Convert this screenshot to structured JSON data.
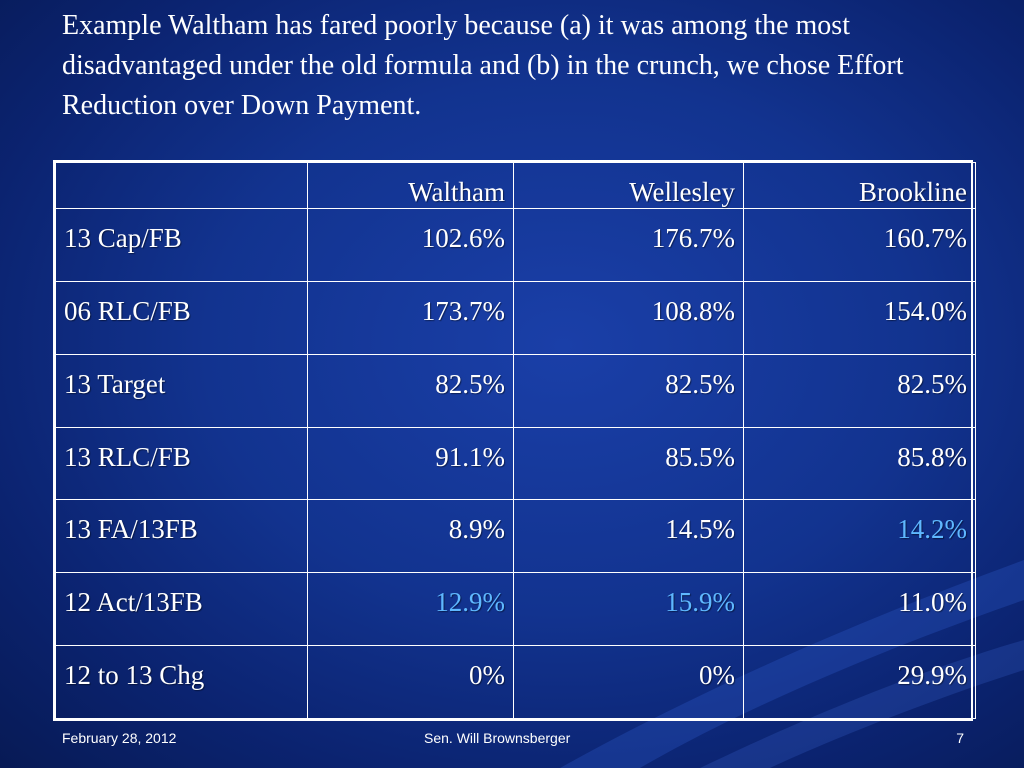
{
  "slide": {
    "title": "Example Waltham has fared poorly because (a) it was among the most disadvantaged under the old formula and (b) in the crunch, we chose Effort Reduction over Down Payment."
  },
  "table": {
    "headers": [
      "",
      "Waltham",
      "Wellesley",
      "Brookline"
    ],
    "rows": [
      {
        "label": "13 Cap/FB",
        "values": [
          "102.6%",
          "176.7%",
          "160.7%"
        ]
      },
      {
        "label": "06 RLC/FB",
        "values": [
          "173.7%",
          "108.8%",
          "154.0%"
        ]
      },
      {
        "label": "13 Target",
        "values": [
          "82.5%",
          "82.5%",
          "82.5%"
        ]
      },
      {
        "label": "13 RLC/FB",
        "values": [
          "91.1%",
          "85.5%",
          "85.8%"
        ]
      },
      {
        "label": "13 FA/13FB",
        "values": [
          "8.9%",
          "14.5%",
          "14.2%"
        ]
      },
      {
        "label": "12 Act/13FB",
        "values": [
          "12.9%",
          "15.9%",
          "11.0%"
        ]
      },
      {
        "label": "12 to 13 Chg",
        "values": [
          "0%",
          "0%",
          "29.9%"
        ]
      }
    ],
    "highlight_color": "#5fb8ff"
  },
  "footer": {
    "date": "February 28, 2012",
    "author": "Sen. Will Brownsberger",
    "page": "7"
  }
}
